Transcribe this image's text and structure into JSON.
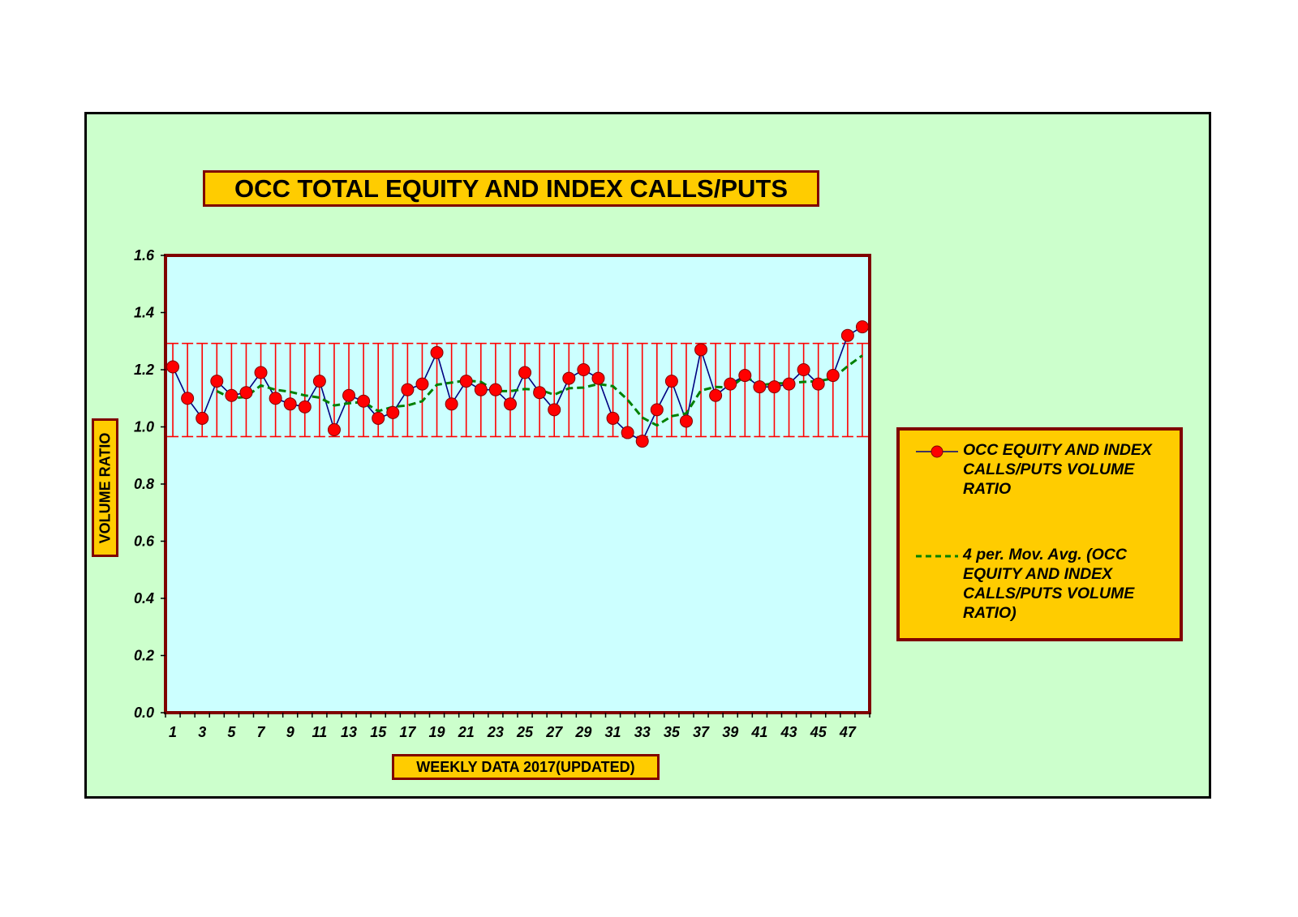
{
  "chart_data": {
    "type": "line",
    "title": "OCC TOTAL EQUITY AND INDEX CALLS/PUTS",
    "xlabel": "WEEKLY DATA 2017(UPDATED)",
    "ylabel": "VOLUME RATIO",
    "x": [
      1,
      2,
      3,
      4,
      5,
      6,
      7,
      8,
      9,
      10,
      11,
      12,
      13,
      14,
      15,
      16,
      17,
      18,
      19,
      20,
      21,
      22,
      23,
      24,
      25,
      26,
      27,
      28,
      29,
      30,
      31,
      32,
      33,
      34,
      35,
      36,
      37,
      38,
      39,
      40,
      41,
      42,
      43,
      44,
      45,
      46,
      47,
      48
    ],
    "x_tick_labels": [
      "1",
      "3",
      "5",
      "7",
      "9",
      "11",
      "13",
      "15",
      "17",
      "19",
      "21",
      "23",
      "25",
      "27",
      "29",
      "31",
      "33",
      "35",
      "37",
      "39",
      "41",
      "43",
      "45",
      "47"
    ],
    "y_tick_labels": [
      "0.0",
      "0.2",
      "0.4",
      "0.6",
      "0.8",
      "1.0",
      "1.2",
      "1.4",
      "1.6"
    ],
    "ylim": [
      0,
      1.6
    ],
    "series": [
      {
        "name": "OCC EQUITY AND INDEX CALLS/PUTS VOLUME RATIO",
        "color": "#ff0000",
        "line_color": "#000080",
        "values": [
          1.21,
          1.1,
          1.03,
          1.16,
          1.11,
          1.12,
          1.19,
          1.1,
          1.08,
          1.07,
          1.16,
          0.99,
          1.11,
          1.09,
          1.03,
          1.05,
          1.13,
          1.15,
          1.26,
          1.08,
          1.16,
          1.13,
          1.13,
          1.08,
          1.19,
          1.12,
          1.06,
          1.17,
          1.2,
          1.17,
          1.03,
          0.98,
          0.95,
          1.06,
          1.16,
          1.02,
          1.27,
          1.11,
          1.15,
          1.18,
          1.14,
          1.14,
          1.15,
          1.2,
          1.15,
          1.18,
          1.32,
          1.35
        ]
      },
      {
        "name": "4 per. Mov. Avg. (OCC EQUITY AND INDEX CALLS/PUTS VOLUME RATIO)",
        "color": "#008000",
        "values": [
          null,
          null,
          null,
          1.125,
          1.1,
          1.105,
          1.145,
          1.13,
          1.1225,
          1.11,
          1.1025,
          1.075,
          1.0825,
          1.0875,
          1.055,
          1.07,
          1.075,
          1.09,
          1.1475,
          1.155,
          1.1625,
          1.1575,
          1.125,
          1.125,
          1.1325,
          1.13,
          1.1125,
          1.135,
          1.1375,
          1.15,
          1.1425,
          1.095,
          1.0325,
          1.005,
          1.0375,
          1.0475,
          1.1275,
          1.14,
          1.1375,
          1.1775,
          1.145,
          1.1525,
          1.1525,
          1.1575,
          1.16,
          1.17,
          1.2125,
          1.25
        ]
      }
    ],
    "error_bars": {
      "type": "standard",
      "color": "#ff0000",
      "low": 0.966,
      "high": 1.292
    },
    "grid": false,
    "legend_position": "right"
  },
  "colors": {
    "frame_bg": "#ccffcc",
    "plot_bg": "#ccffff",
    "plot_border": "#800000",
    "label_box_bg": "#ffcc00"
  }
}
